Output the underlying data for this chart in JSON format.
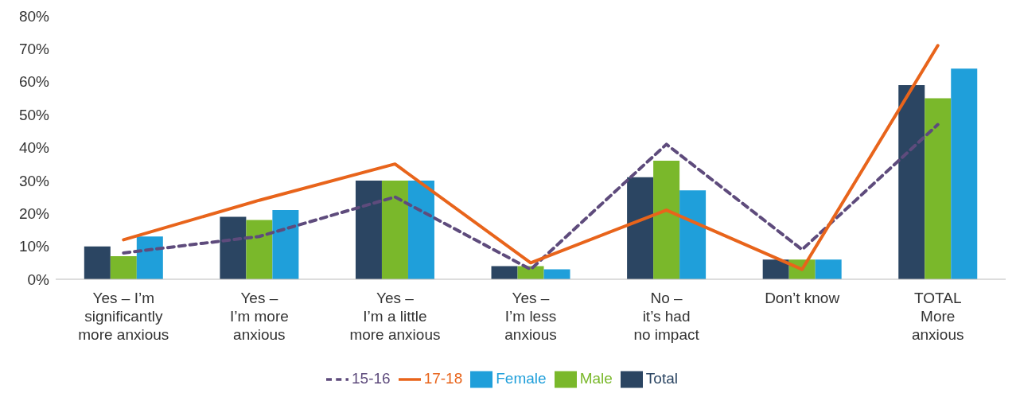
{
  "chart_data": {
    "type": "bar",
    "categories": [
      "Yes – I’m\nsignificantly\nmore anxious",
      "Yes –\nI’m more\nanxious",
      "Yes –\nI’m a little\nmore anxious",
      "Yes –\nI’m less\nanxious",
      "No –\nit’s had\nno impact",
      "Don’t know",
      "TOTAL\nMore\nanxious"
    ],
    "series": [
      {
        "name": "Total",
        "color": "#2b4562",
        "values": [
          10,
          19,
          30,
          4,
          31,
          6,
          59
        ]
      },
      {
        "name": "Male",
        "color": "#7ab82b",
        "values": [
          7,
          18,
          30,
          4,
          36,
          6,
          55
        ]
      },
      {
        "name": "Female",
        "color": "#1f9fda",
        "values": [
          13,
          21,
          30,
          3,
          27,
          6,
          64
        ]
      },
      {
        "name": "15-16",
        "type": "line",
        "line_style": "dashed",
        "color": "#5e4b7c",
        "values": [
          8,
          13,
          25,
          3,
          41,
          9,
          47
        ]
      },
      {
        "name": "17-18",
        "type": "line",
        "line_style": "solid",
        "color": "#e8641b",
        "values": [
          12,
          24,
          35,
          5,
          21,
          3,
          71
        ]
      }
    ],
    "ylim": [
      0,
      80
    ],
    "yticks": [
      {
        "value": 0,
        "label": "0%"
      },
      {
        "value": 10,
        "label": "10%"
      },
      {
        "value": 20,
        "label": "20%"
      },
      {
        "value": 30,
        "label": "30%"
      },
      {
        "value": 40,
        "label": "40%"
      },
      {
        "value": 50,
        "label": "50%"
      },
      {
        "value": 60,
        "label": "60%"
      },
      {
        "value": 70,
        "label": "70%"
      },
      {
        "value": 80,
        "label": "80%"
      }
    ],
    "legend": "bottom",
    "marker": "none"
  }
}
